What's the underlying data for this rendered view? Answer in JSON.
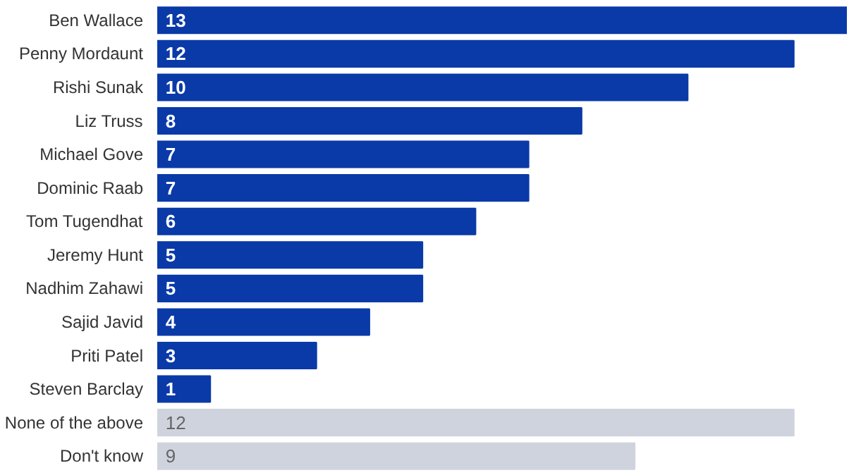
{
  "chart_data": {
    "type": "bar",
    "orientation": "horizontal",
    "data_labels": true,
    "categories": [
      "Ben Wallace",
      "Penny Mordaunt",
      "Rishi Sunak",
      "Liz Truss",
      "Michael Gove",
      "Dominic Raab",
      "Tom Tugendhat",
      "Jeremy Hunt",
      "Nadhim Zahawi",
      "Sajid Javid",
      "Priti Patel",
      "Steven Barclay",
      "None of the above",
      "Don't know"
    ],
    "values": [
      13,
      12,
      10,
      8,
      7,
      7,
      6,
      5,
      5,
      4,
      3,
      1,
      12,
      9
    ],
    "colors": [
      "#0a3aa8",
      "#0a3aa8",
      "#0a3aa8",
      "#0a3aa8",
      "#0a3aa8",
      "#0a3aa8",
      "#0a3aa8",
      "#0a3aa8",
      "#0a3aa8",
      "#0a3aa8",
      "#0a3aa8",
      "#0a3aa8",
      "#cfd3dd",
      "#cfd3dd"
    ]
  }
}
